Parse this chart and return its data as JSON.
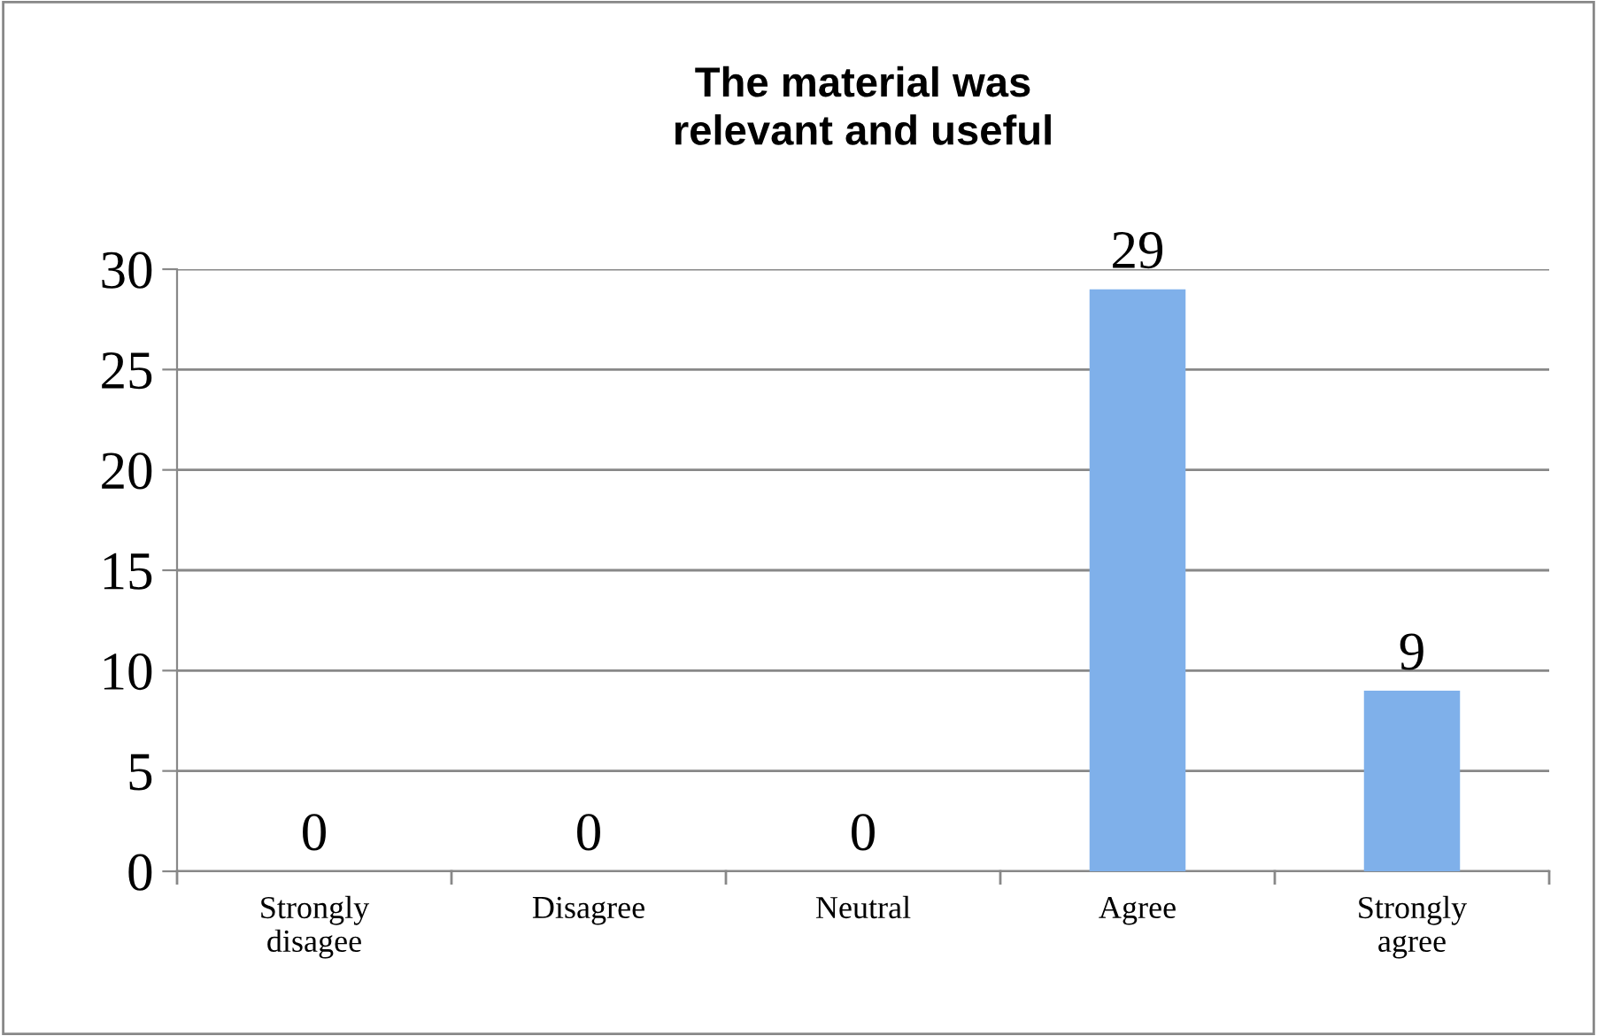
{
  "chart_data": {
    "type": "bar",
    "title": "The material was\nrelevant and useful",
    "categories": [
      "Strongly\ndisagee",
      "Disagree",
      "Neutral",
      "Agree",
      "Strongly\nagree"
    ],
    "values": [
      0,
      0,
      0,
      29,
      9
    ],
    "color": "#7fb0ea",
    "ylim": [
      0,
      30
    ],
    "yticks": [
      0,
      5,
      10,
      15,
      20,
      25,
      30
    ],
    "grid": "y",
    "data_labels": true,
    "legend": false
  }
}
